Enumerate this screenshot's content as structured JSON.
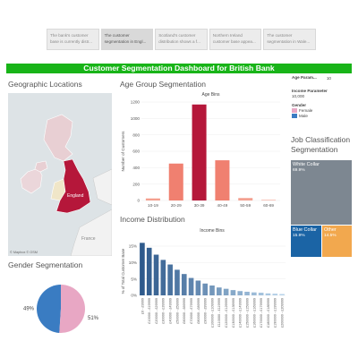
{
  "story": {
    "tabs": [
      {
        "label": "The bank's customer base is currently distr...",
        "active": false
      },
      {
        "label": "The customer segmentation in Engl...",
        "active": true
      },
      {
        "label": "Scotland's customer distribution shows a f...",
        "active": false
      },
      {
        "label": "Northern Ireland customer base appea...",
        "active": false
      },
      {
        "label": "The customer segmentation in Wale...",
        "active": false
      }
    ]
  },
  "dashboard": {
    "title": "Customer Segmentation Dashboard for British Bank"
  },
  "sections": {
    "geo": "Geographic Locations",
    "age": "Age Group Segmentation",
    "income": "Income Distribution",
    "gender": "Gender Segmentation",
    "job": "Job Classification\nSegmentation"
  },
  "map": {
    "highlight_label": "England",
    "highlight_color": "#b5173a",
    "other_regions_color": "#e8cfd3",
    "country_label_france": "France",
    "credit": "© Mapbox © OSM"
  },
  "legend": {
    "age_param_label": "Age Param...",
    "age_param_value": "10",
    "income_param_label": "Income Parameter",
    "income_param_value": "10,000",
    "gender_header": "Gender",
    "gender_items": [
      {
        "label": "Female",
        "color": "#e8a7c4"
      },
      {
        "label": "Male",
        "color": "#3a7cc2"
      }
    ]
  },
  "treemap": {
    "cells": [
      {
        "label": "White Collar",
        "pct": "69.9%",
        "color": "#7d8791"
      },
      {
        "label": "Blue Collar",
        "pct": "15.9%",
        "color": "#1b64a5"
      },
      {
        "label": "Other",
        "pct": "14.5%",
        "color": "#f2a84e"
      }
    ]
  },
  "chart_data": [
    {
      "type": "bar",
      "title": "Age Bins",
      "ylabel": "Number of Customers",
      "categories": [
        "10-19",
        "20-29",
        "30-39",
        "40-49",
        "50-59",
        "60-69"
      ],
      "values": [
        25,
        450,
        1170,
        490,
        30,
        2
      ],
      "ylim": [
        0,
        1200
      ],
      "yticks": [
        0,
        200,
        400,
        600,
        800,
        1000,
        1200
      ],
      "grid": true,
      "colors": [
        "#f4a090",
        "#f08070",
        "#b5173a",
        "#f08070",
        "#f4a090",
        "#f4a090"
      ]
    },
    {
      "type": "bar",
      "title": "Income Bins",
      "ylabel": "% of Total Customer Base",
      "categories": [
        "£0 - £9999",
        "£10000 - £19999",
        "£20000 - £29999",
        "£30000 - £39999",
        "£40000 - £49999",
        "£50000 - £59999",
        "£60000 - £69999",
        "£70000 - £79999",
        "£80000 - £89999",
        "£90000 - £99999",
        "£100000 - £109999",
        "£110000 - £119999",
        "£120000 - £129999",
        "£130000 - £139999",
        "£140000 - £149999",
        "£150000 - £159999",
        "£160000 - £169999",
        "£170000 - £179999",
        "£180000 - £189999",
        "£190000 - £199999",
        "£200000 - £209999"
      ],
      "values": [
        16.0,
        14.5,
        12.4,
        10.8,
        9.4,
        7.8,
        6.5,
        5.3,
        4.5,
        3.6,
        3.0,
        2.4,
        2.0,
        1.6,
        1.3,
        1.1,
        0.9,
        0.8,
        0.6,
        0.5,
        0.4
      ],
      "ylim": [
        0,
        18
      ],
      "yticks": [
        0,
        5,
        10,
        15
      ],
      "yticklabels": [
        "0%",
        "5%",
        "10%",
        "15%"
      ],
      "grid": true,
      "color_start": "#2e5a8c",
      "color_end": "#b7d3ea"
    },
    {
      "type": "pie",
      "labels": [
        "Male",
        "Female"
      ],
      "values": [
        49,
        51
      ],
      "data_labels": [
        "49%",
        "51%"
      ],
      "colors": [
        "#3a7cc2",
        "#e8a7c4"
      ]
    }
  ]
}
